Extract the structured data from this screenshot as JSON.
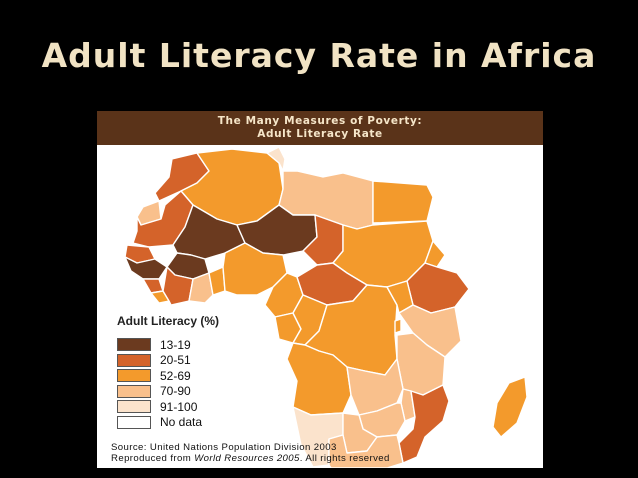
{
  "slide": {
    "title": "Adult Literacy Rate in Africa"
  },
  "figure": {
    "header_line1": "The Many Measures of Poverty:",
    "header_line2": "Adult Literacy Rate"
  },
  "legend": {
    "title": "Adult Literacy (%)",
    "items": [
      {
        "label": "13-19",
        "color": "#6b3a1f"
      },
      {
        "label": "20-51",
        "color": "#d4632a"
      },
      {
        "label": "52-69",
        "color": "#f39a2c"
      },
      {
        "label": "70-90",
        "color": "#f9c08c"
      },
      {
        "label": "91-100",
        "color": "#fbe3cc"
      },
      {
        "label": "No data",
        "color": "#ffffff"
      }
    ]
  },
  "source": {
    "line1": "Source: United Nations Population Division 2003",
    "line2_prefix": "Reproduced from ",
    "line2_italic": "World Resources 2005",
    "line2_suffix": ". All rights reserved"
  },
  "colors": {
    "background": "#000000",
    "title_text": "#f1e3c4",
    "header_bg": "#5a3319",
    "ocean": "#ffffff",
    "border_line": "#ffffff"
  }
}
